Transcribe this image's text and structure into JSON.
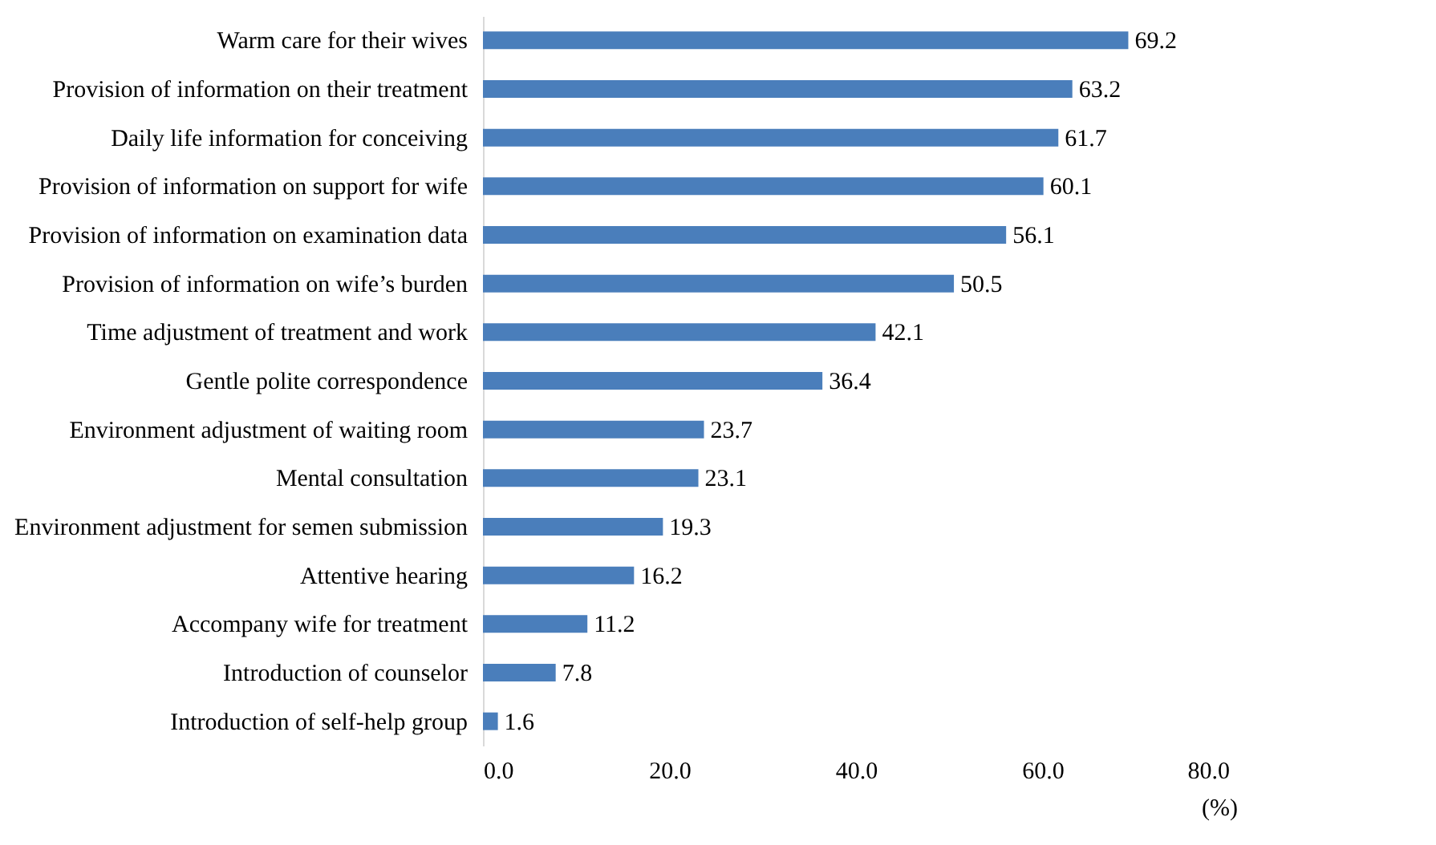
{
  "chart_data": {
    "type": "bar",
    "orientation": "horizontal",
    "xlabel": "(%)",
    "categories": [
      "Warm care for their wives",
      "Provision of information on their treatment",
      "Daily life information for conceiving",
      "Provision of information on support for wife",
      "Provision of information on examination data",
      "Provision of information on wife’s burden",
      "Time adjustment of treatment and work",
      "Gentle polite correspondence",
      "Environment adjustment of waiting room",
      "Mental consultation",
      "Environment adjustment for semen submission",
      "Attentive hearing",
      "Accompany wife for treatment",
      "Introduction of counselor",
      "Introduction of self-help group"
    ],
    "values": [
      69.2,
      63.2,
      61.7,
      60.1,
      56.1,
      50.5,
      42.1,
      36.4,
      23.7,
      23.1,
      19.3,
      16.2,
      11.2,
      7.8,
      1.6
    ],
    "color": "#4a7ebb",
    "data_labels": true,
    "xlim": [
      0,
      80
    ],
    "xticks": [
      {
        "value": 0,
        "label": "0.0"
      },
      {
        "value": 20,
        "label": "20.0"
      },
      {
        "value": 40,
        "label": "40.0"
      },
      {
        "value": 60,
        "label": "60.0"
      },
      {
        "value": 80,
        "label": "80.0"
      }
    ]
  }
}
